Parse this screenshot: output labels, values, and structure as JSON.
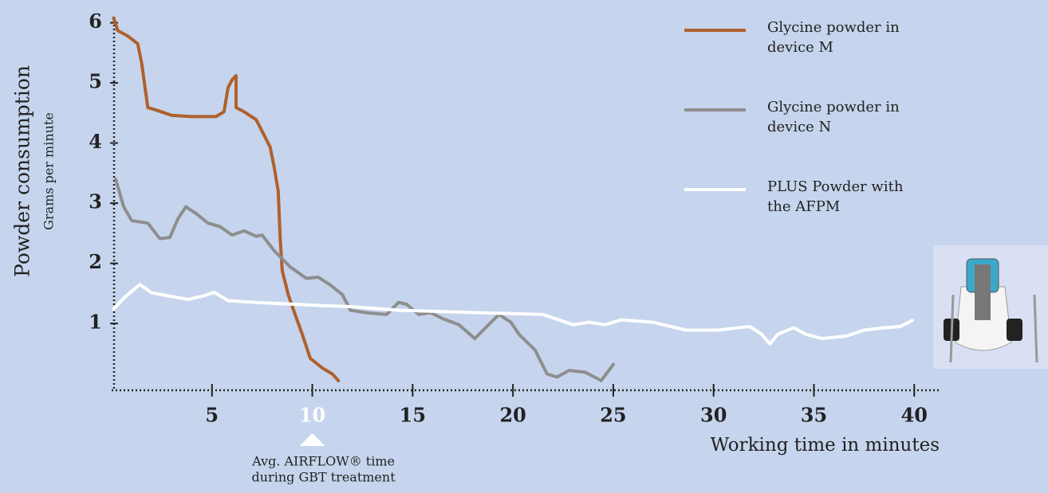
{
  "chart_data": {
    "type": "line",
    "ylabel": "Powder consumption",
    "ysublabel": "Grams per minute",
    "xlabel": "Working time in minutes",
    "xlim": [
      0,
      41.3
    ],
    "xticks": [
      5,
      10,
      15,
      20,
      25,
      30,
      35,
      40
    ],
    "ylim": [
      -0.11,
      6.1
    ],
    "yticks": [
      1,
      2,
      3,
      4,
      5,
      6
    ],
    "annotation": {
      "x": 10,
      "lines": [
        "Avg. AIRFLOW® time",
        "during GBT treatment"
      ]
    },
    "series": [
      {
        "name": "Glycine powder in device M",
        "color": "#b0602c",
        "x": [
          0.1,
          0.3,
          0.8,
          1.3,
          1.5,
          1.8,
          2.2,
          3.0,
          4.0,
          5.2,
          5.6,
          5.8,
          6.0,
          6.2,
          6.2,
          6.6,
          7.2,
          7.6,
          7.9,
          8.1,
          8.3,
          8.4,
          8.5,
          8.8,
          9.1,
          9.5,
          9.9,
          10.5,
          11.0,
          11.3
        ],
        "values": [
          6.08,
          5.87,
          5.78,
          5.65,
          5.32,
          4.59,
          4.55,
          4.46,
          4.44,
          4.44,
          4.52,
          4.92,
          5.05,
          5.12,
          4.59,
          4.52,
          4.39,
          4.13,
          3.93,
          3.6,
          3.2,
          2.41,
          1.88,
          1.48,
          1.19,
          0.82,
          0.42,
          0.26,
          0.16,
          0.05
        ]
      },
      {
        "name": "Glycine powder in device N",
        "color": "#8e8e8e",
        "x": [
          0.2,
          0.6,
          1.0,
          1.8,
          2.4,
          2.9,
          3.3,
          3.7,
          4.2,
          4.8,
          5.4,
          6.0,
          6.6,
          7.2,
          7.5,
          8.1,
          8.9,
          9.7,
          10.3,
          10.9,
          11.5,
          11.9,
          12.7,
          13.7,
          14.3,
          14.7,
          15.3,
          15.9,
          16.5,
          17.3,
          18.1,
          18.7,
          19.3,
          19.9,
          20.3,
          21.1,
          21.7,
          22.2,
          22.8,
          23.6,
          24.4,
          25.0
        ],
        "values": [
          3.4,
          2.94,
          2.71,
          2.67,
          2.41,
          2.43,
          2.74,
          2.94,
          2.83,
          2.67,
          2.61,
          2.47,
          2.54,
          2.45,
          2.47,
          2.21,
          1.94,
          1.75,
          1.77,
          1.64,
          1.48,
          1.22,
          1.18,
          1.15,
          1.35,
          1.32,
          1.15,
          1.18,
          1.08,
          0.98,
          0.75,
          0.95,
          1.15,
          1.02,
          0.82,
          0.56,
          0.16,
          0.11,
          0.22,
          0.19,
          0.05,
          0.32
        ]
      },
      {
        "name": "PLUS Powder with the AFPM",
        "color": "#ffffff",
        "x": [
          0.1,
          0.6,
          1.4,
          2.0,
          2.8,
          3.8,
          4.6,
          5.1,
          5.8,
          7.2,
          10.3,
          11.9,
          14.3,
          18.3,
          21.5,
          23.0,
          23.8,
          24.6,
          25.4,
          27.0,
          28.6,
          30.2,
          31.8,
          32.4,
          32.8,
          33.2,
          34.0,
          34.6,
          35.4,
          36.6,
          37.5,
          38.5,
          39.3,
          39.9
        ],
        "values": [
          1.24,
          1.42,
          1.65,
          1.51,
          1.46,
          1.4,
          1.46,
          1.52,
          1.38,
          1.35,
          1.3,
          1.28,
          1.22,
          1.18,
          1.15,
          0.98,
          1.02,
          0.98,
          1.06,
          1.02,
          0.89,
          0.89,
          0.95,
          0.82,
          0.66,
          0.82,
          0.93,
          0.82,
          0.75,
          0.79,
          0.89,
          0.93,
          0.95,
          1.05
        ]
      }
    ]
  }
}
